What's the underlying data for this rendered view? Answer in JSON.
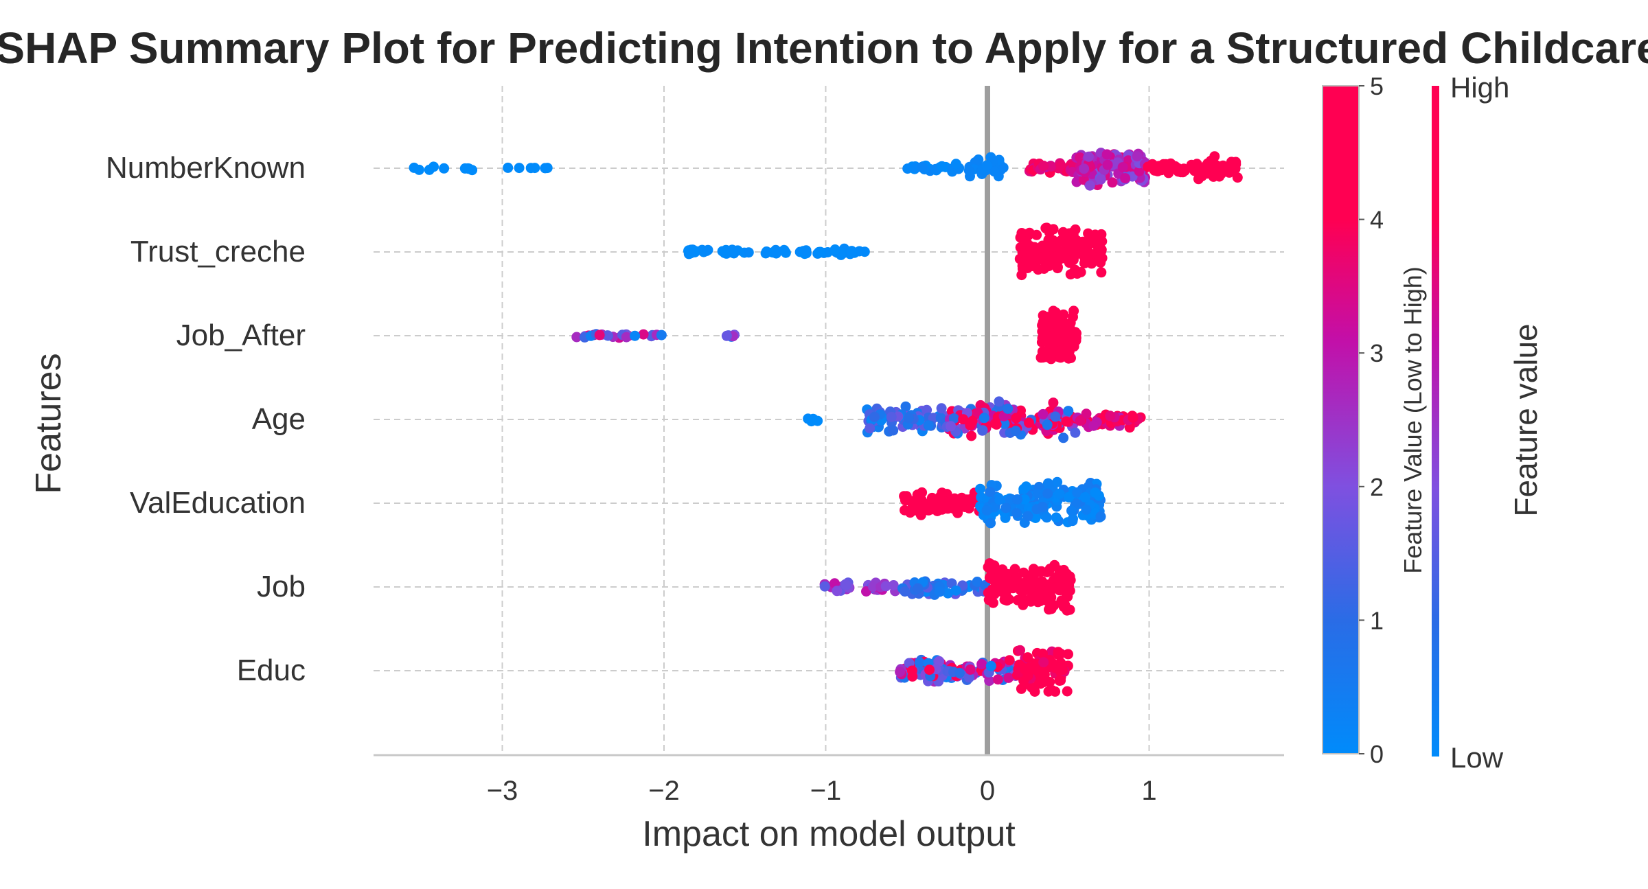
{
  "chart_data": {
    "type": "scatter",
    "subtype": "shap-beeswarm",
    "title": "SHAP Summary Plot for Predicting Intention to Apply for a Structured Childcare",
    "xlabel": "Impact on model output",
    "ylabel": "Features",
    "x_ticks": [
      "−3",
      "−2",
      "−1",
      "0",
      "1"
    ],
    "x_tick_values": [
      -3,
      -2,
      -1,
      0,
      1
    ],
    "xlim": [
      -3.8,
      1.85
    ],
    "grid": true,
    "reference_line_x": 0,
    "features": [
      "NumberKnown",
      "Trust_creche",
      "Job_After",
      "Age",
      "ValEducation",
      "Job",
      "Educ"
    ],
    "colors": {
      "low": "#008bfb",
      "mid_low": "#2a6ce6",
      "mid": "#7f50e0",
      "mid_high": "#c30fa8",
      "high": "#ff0052"
    },
    "colorbar_numeric": {
      "label": "Feature Value (Low to High)",
      "ticks": [
        "0",
        "1",
        "2",
        "3",
        "4",
        "5"
      ],
      "range": [
        0,
        5
      ]
    },
    "colorbar_qualitative": {
      "label": "Feature value",
      "high_label": "High",
      "low_label": "Low"
    },
    "series": [
      {
        "feature": "NumberKnown",
        "clusters": [
          {
            "min": -3.55,
            "max": -3.18,
            "n": 10,
            "spread": 0.05,
            "color": [
              0.0,
              0.05
            ]
          },
          {
            "min": -2.98,
            "max": -2.72,
            "n": 6,
            "spread": 0.04,
            "color": [
              0.0,
              0.05
            ]
          },
          {
            "min": -0.5,
            "max": -0.14,
            "n": 25,
            "spread": 0.12,
            "color": [
              0.0,
              0.25
            ]
          },
          {
            "min": -0.12,
            "max": 0.1,
            "n": 30,
            "spread": 0.28,
            "color": [
              0.15,
              0.3
            ]
          },
          {
            "min": 0.25,
            "max": 0.55,
            "n": 30,
            "spread": 0.15,
            "color": [
              3.0,
              4.2
            ]
          },
          {
            "min": 0.55,
            "max": 0.98,
            "n": 120,
            "spread": 0.5,
            "color": [
              1.8,
              3.6
            ]
          },
          {
            "min": 0.98,
            "max": 1.3,
            "n": 40,
            "spread": 0.15,
            "color": [
              4.0,
              5.0
            ]
          },
          {
            "min": 1.3,
            "max": 1.55,
            "n": 30,
            "spread": 0.3,
            "color": [
              4.2,
              5.0
            ]
          }
        ]
      },
      {
        "feature": "Trust_creche",
        "clusters": [
          {
            "min": -1.9,
            "max": -0.73,
            "n": 60,
            "spread": 0.08,
            "color": [
              0.0,
              0.1
            ]
          },
          {
            "min": 0.2,
            "max": 0.72,
            "n": 160,
            "spread": 0.6,
            "color": [
              4.5,
              5.0
            ]
          }
        ]
      },
      {
        "feature": "Job_After",
        "clusters": [
          {
            "min": -2.55,
            "max": -2.0,
            "n": 24,
            "spread": 0.06,
            "color": [
              0.0,
              3.8
            ]
          },
          {
            "min": -1.75,
            "max": -1.5,
            "n": 5,
            "spread": 0.03,
            "color": [
              0.0,
              3.0
            ]
          },
          {
            "min": 0.33,
            "max": 0.55,
            "n": 140,
            "spread": 0.65,
            "color": [
              4.8,
              5.0
            ]
          }
        ]
      },
      {
        "feature": "Age",
        "clusters": [
          {
            "min": -1.18,
            "max": -1.05,
            "n": 4,
            "spread": 0.05,
            "color": [
              0.0,
              0.1
            ]
          },
          {
            "min": -0.75,
            "max": -0.25,
            "n": 70,
            "spread": 0.35,
            "color": [
              0.0,
              1.8
            ]
          },
          {
            "min": -0.25,
            "max": 0.55,
            "n": 140,
            "spread": 0.45,
            "color": [
              0.5,
              5.0
            ]
          },
          {
            "min": 0.55,
            "max": 0.95,
            "n": 40,
            "spread": 0.2,
            "color": [
              2.8,
              4.6
            ]
          }
        ]
      },
      {
        "feature": "ValEducation",
        "clusters": [
          {
            "min": -0.52,
            "max": -0.05,
            "n": 70,
            "spread": 0.3,
            "color": [
              4.5,
              5.0
            ]
          },
          {
            "min": -0.05,
            "max": 0.72,
            "n": 150,
            "spread": 0.55,
            "color": [
              0.0,
              0.6
            ]
          }
        ]
      },
      {
        "feature": "Job",
        "clusters": [
          {
            "min": -1.05,
            "max": -0.55,
            "n": 30,
            "spread": 0.12,
            "color": [
              1.5,
              3.2
            ]
          },
          {
            "min": -0.55,
            "max": 0.0,
            "n": 60,
            "spread": 0.2,
            "color": [
              0.0,
              1.8
            ]
          },
          {
            "min": 0.0,
            "max": 0.52,
            "n": 150,
            "spread": 0.6,
            "color": [
              4.2,
              5.0
            ]
          }
        ]
      },
      {
        "feature": "Educ",
        "clusters": [
          {
            "min": -0.55,
            "max": 0.18,
            "n": 120,
            "spread": 0.28,
            "color": [
              0.0,
              5.0
            ]
          },
          {
            "min": 0.18,
            "max": 0.5,
            "n": 80,
            "spread": 0.6,
            "color": [
              3.5,
              5.0
            ]
          }
        ]
      }
    ]
  }
}
